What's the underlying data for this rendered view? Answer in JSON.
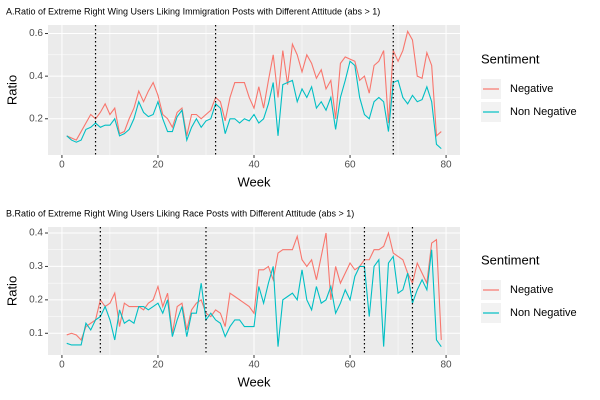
{
  "chart_data": [
    {
      "type": "line",
      "title": "A.Ratio of Extreme Right Wing Users Liking Immigration Posts with Different Attitude (abs > 1)",
      "x_label": "Week",
      "y_label": "Ratio",
      "legend_title": "Sentiment",
      "x": [
        1,
        2,
        3,
        4,
        5,
        6,
        7,
        8,
        9,
        10,
        11,
        12,
        13,
        14,
        15,
        16,
        17,
        18,
        19,
        20,
        21,
        22,
        23,
        24,
        25,
        26,
        27,
        28,
        29,
        30,
        31,
        32,
        33,
        34,
        35,
        36,
        37,
        38,
        39,
        40,
        41,
        42,
        43,
        44,
        45,
        46,
        47,
        48,
        49,
        50,
        51,
        52,
        53,
        54,
        55,
        56,
        57,
        58,
        59,
        60,
        61,
        62,
        63,
        64,
        65,
        66,
        67,
        68,
        69,
        70,
        71,
        72,
        73,
        74,
        75,
        76,
        77,
        78,
        79
      ],
      "series": [
        {
          "name": "Negative",
          "color": "#F8766D",
          "values": [
            0.12,
            0.11,
            0.1,
            0.14,
            0.18,
            0.22,
            0.2,
            0.23,
            0.27,
            0.22,
            0.25,
            0.13,
            0.14,
            0.2,
            0.25,
            0.33,
            0.28,
            0.33,
            0.37,
            0.31,
            0.22,
            0.2,
            0.16,
            0.23,
            0.25,
            0.12,
            0.22,
            0.22,
            0.2,
            0.22,
            0.24,
            0.3,
            0.28,
            0.19,
            0.3,
            0.37,
            0.37,
            0.37,
            0.3,
            0.25,
            0.35,
            0.25,
            0.38,
            0.5,
            0.3,
            0.52,
            0.36,
            0.55,
            0.5,
            0.42,
            0.5,
            0.46,
            0.39,
            0.43,
            0.34,
            0.38,
            0.2,
            0.46,
            0.49,
            0.48,
            0.47,
            0.38,
            0.4,
            0.32,
            0.45,
            0.47,
            0.52,
            0.18,
            0.52,
            0.47,
            0.52,
            0.61,
            0.57,
            0.4,
            0.39,
            0.51,
            0.45,
            0.12,
            0.14
          ]
        },
        {
          "name": "Non Negative",
          "color": "#00BFC4",
          "values": [
            0.12,
            0.1,
            0.09,
            0.1,
            0.15,
            0.16,
            0.18,
            0.16,
            0.17,
            0.17,
            0.2,
            0.12,
            0.13,
            0.15,
            0.2,
            0.28,
            0.23,
            0.21,
            0.22,
            0.28,
            0.2,
            0.14,
            0.14,
            0.21,
            0.24,
            0.1,
            0.16,
            0.2,
            0.16,
            0.19,
            0.2,
            0.27,
            0.25,
            0.13,
            0.2,
            0.2,
            0.18,
            0.2,
            0.19,
            0.22,
            0.18,
            0.2,
            0.27,
            0.37,
            0.12,
            0.36,
            0.37,
            0.38,
            0.28,
            0.34,
            0.3,
            0.35,
            0.25,
            0.28,
            0.24,
            0.3,
            0.15,
            0.3,
            0.38,
            0.47,
            0.45,
            0.3,
            0.22,
            0.2,
            0.28,
            0.3,
            0.28,
            0.14,
            0.37,
            0.38,
            0.3,
            0.27,
            0.31,
            0.28,
            0.29,
            0.35,
            0.28,
            0.08,
            0.06
          ]
        }
      ],
      "vlines": [
        7,
        32,
        69
      ],
      "xlim": [
        -2.9,
        82.9
      ],
      "xticks": [
        0,
        20,
        40,
        60,
        80
      ],
      "ylim": [
        0.03,
        0.64
      ],
      "yticks": [
        0.2,
        0.4,
        0.6
      ],
      "grid": true
    },
    {
      "type": "line",
      "title": "B.Ratio of Extreme Right Wing Users Liking Race Posts with Different Attitude (abs > 1)",
      "x_label": "Week",
      "y_label": "Ratio",
      "legend_title": "Sentiment",
      "x": [
        1,
        2,
        3,
        4,
        5,
        6,
        7,
        8,
        9,
        10,
        11,
        12,
        13,
        14,
        15,
        16,
        17,
        18,
        19,
        20,
        21,
        22,
        23,
        24,
        25,
        26,
        27,
        28,
        29,
        30,
        31,
        32,
        33,
        34,
        35,
        36,
        37,
        38,
        39,
        40,
        41,
        42,
        43,
        44,
        45,
        46,
        47,
        48,
        49,
        50,
        51,
        52,
        53,
        54,
        55,
        56,
        57,
        58,
        59,
        60,
        61,
        62,
        63,
        64,
        65,
        66,
        67,
        68,
        69,
        70,
        71,
        72,
        73,
        74,
        75,
        76,
        77,
        78,
        79
      ],
      "series": [
        {
          "name": "Negative",
          "color": "#F8766D",
          "values": [
            0.095,
            0.1,
            0.095,
            0.08,
            0.12,
            0.13,
            0.14,
            0.2,
            0.18,
            0.19,
            0.22,
            0.12,
            0.19,
            0.18,
            0.18,
            0.18,
            0.17,
            0.19,
            0.2,
            0.24,
            0.18,
            0.22,
            0.1,
            0.18,
            0.19,
            0.11,
            0.17,
            0.19,
            0.2,
            0.16,
            0.15,
            0.17,
            0.16,
            0.12,
            0.22,
            0.21,
            0.2,
            0.19,
            0.18,
            0.16,
            0.29,
            0.29,
            0.3,
            0.26,
            0.34,
            0.35,
            0.35,
            0.35,
            0.39,
            0.32,
            0.3,
            0.32,
            0.26,
            0.33,
            0.4,
            0.2,
            0.3,
            0.25,
            0.28,
            0.31,
            0.29,
            0.3,
            0.32,
            0.32,
            0.35,
            0.35,
            0.36,
            0.4,
            0.34,
            0.33,
            0.32,
            0.28,
            0.25,
            0.31,
            0.28,
            0.25,
            0.37,
            0.38,
            0.08
          ]
        },
        {
          "name": "Non Negative",
          "color": "#00BFC4",
          "values": [
            0.07,
            0.065,
            0.065,
            0.065,
            0.13,
            0.11,
            0.14,
            0.15,
            0.18,
            0.14,
            0.08,
            0.17,
            0.13,
            0.14,
            0.13,
            0.18,
            0.18,
            0.17,
            0.18,
            0.19,
            0.16,
            0.2,
            0.09,
            0.14,
            0.18,
            0.09,
            0.16,
            0.16,
            0.25,
            0.14,
            0.16,
            0.14,
            0.13,
            0.09,
            0.12,
            0.14,
            0.14,
            0.12,
            0.12,
            0.12,
            0.24,
            0.19,
            0.25,
            0.3,
            0.06,
            0.2,
            0.21,
            0.22,
            0.2,
            0.29,
            0.2,
            0.17,
            0.24,
            0.19,
            0.2,
            0.24,
            0.16,
            0.19,
            0.23,
            0.2,
            0.27,
            0.3,
            0.3,
            0.15,
            0.3,
            0.32,
            0.06,
            0.31,
            0.33,
            0.22,
            0.23,
            0.28,
            0.19,
            0.23,
            0.26,
            0.23,
            0.35,
            0.08,
            0.06
          ]
        }
      ],
      "vlines": [
        8,
        30,
        63,
        73
      ],
      "xlim": [
        -2.9,
        82.9
      ],
      "xticks": [
        0,
        20,
        40,
        60,
        80
      ],
      "ylim": [
        0.035,
        0.418
      ],
      "yticks": [
        0.1,
        0.2,
        0.3,
        0.4
      ],
      "grid": true
    }
  ]
}
